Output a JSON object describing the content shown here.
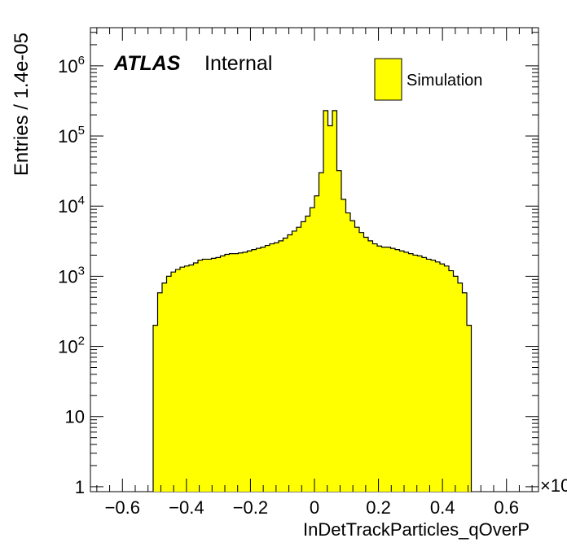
{
  "chart_data": {
    "type": "bar",
    "histogram_style": "step-filled",
    "fill_color": "#ffff00",
    "line_color": "#000000",
    "y_scale": "log",
    "xlim": [
      -0.7,
      0.7
    ],
    "ylim": [
      0.85,
      3500000
    ],
    "xlabel": "InDetTrackParticles_qOverP",
    "ylabel": "Entries / 1.4e-05",
    "x_multiplier_label": "×10",
    "atlas_label": "ATLAS",
    "atlas_sublabel": "Internal",
    "legend": {
      "position": "top-right",
      "entries": [
        "Simulation"
      ]
    },
    "x_ticks": [
      {
        "value": -0.6,
        "label": "−0.6"
      },
      {
        "value": -0.4,
        "label": "−0.4"
      },
      {
        "value": -0.2,
        "label": "−0.2"
      },
      {
        "value": 0,
        "label": "0"
      },
      {
        "value": 0.2,
        "label": "0.2"
      },
      {
        "value": 0.4,
        "label": "0.4"
      },
      {
        "value": 0.6,
        "label": "0.6"
      }
    ],
    "y_ticks": [
      {
        "value": 1,
        "base": "1",
        "exp": ""
      },
      {
        "value": 10,
        "base": "10",
        "exp": ""
      },
      {
        "value": 100,
        "base": "10",
        "exp": "2"
      },
      {
        "value": 1000,
        "base": "10",
        "exp": "3"
      },
      {
        "value": 10000,
        "base": "10",
        "exp": "4"
      },
      {
        "value": 100000,
        "base": "10",
        "exp": "5"
      },
      {
        "value": 1000000,
        "base": "10",
        "exp": "6"
      }
    ],
    "bin_width": 0.014,
    "bin_start": -0.504,
    "values": [
      200,
      580,
      800,
      1000,
      1150,
      1250,
      1350,
      1400,
      1450,
      1550,
      1700,
      1750,
      1750,
      1800,
      1850,
      1950,
      2050,
      2100,
      2100,
      2150,
      2200,
      2300,
      2400,
      2500,
      2600,
      2750,
      2900,
      3000,
      3200,
      3500,
      3900,
      4400,
      5000,
      6000,
      7200,
      9500,
      14000,
      30000,
      230000,
      140000,
      230000,
      32000,
      12500,
      8000,
      6200,
      5000,
      4200,
      3600,
      3200,
      2900,
      2700,
      2600,
      2600,
      2500,
      2400,
      2300,
      2200,
      2100,
      2000,
      1950,
      1850,
      1750,
      1700,
      1600,
      1500,
      1400,
      1200,
      1000,
      800,
      580,
      200
    ]
  }
}
